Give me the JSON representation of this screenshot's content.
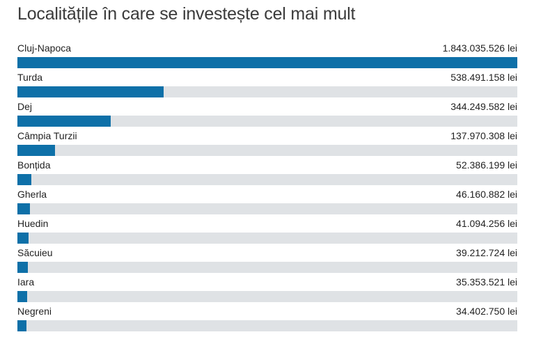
{
  "title": "Localitățile în care se investește cel mai mult",
  "colors": {
    "bar": "#0e70a8",
    "track": "#dfe2e5",
    "title_text": "#3b3b3b",
    "label_text": "#222222",
    "background": "#ffffff"
  },
  "chart_data": {
    "type": "bar",
    "orientation": "horizontal",
    "title": "Localitățile în care se investește cel mai mult",
    "unit": "lei",
    "xlabel": "",
    "ylabel": "",
    "grid": false,
    "legend_position": "none",
    "axis_range": [
      0,
      1843035526
    ],
    "max_value": 1843035526,
    "categories": [
      "Cluj-Napoca",
      "Turda",
      "Dej",
      "Câmpia Turzii",
      "Bonțida",
      "Gherla",
      "Huedin",
      "Săcuieu",
      "Iara",
      "Negreni"
    ],
    "values": [
      1843035526,
      538491158,
      344249582,
      137970308,
      52386199,
      46160882,
      41094256,
      39212724,
      35353521,
      34402750
    ],
    "value_labels": [
      "1.843.035.526 lei",
      "538.491.158 lei",
      "344.249.582 lei",
      "137.970.308 lei",
      "52.386.199 lei",
      "46.160.882 lei",
      "41.094.256 lei",
      "39.212.724 lei",
      "35.353.521 lei",
      "34.402.750 lei"
    ]
  }
}
